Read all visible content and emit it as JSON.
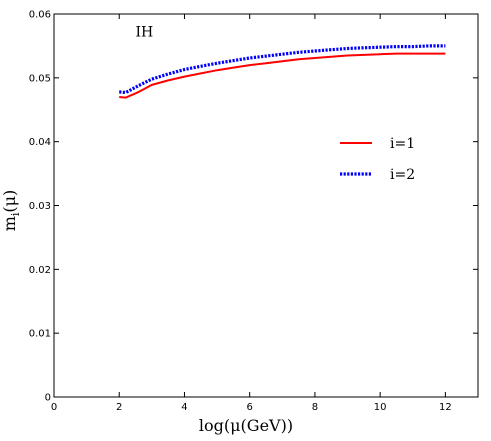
{
  "chart_data": {
    "type": "line",
    "title": "",
    "xlabel": "log(μ(GeV))",
    "ylabel": "m_i(μ)",
    "ylabel_main": "m",
    "ylabel_sub": "i",
    "ylabel_tail": "(μ)",
    "xlim": [
      0,
      13
    ],
    "ylim": [
      0,
      0.06
    ],
    "x_ticks": [
      0,
      2,
      4,
      6,
      8,
      10,
      12
    ],
    "y_ticks": [
      0,
      0.01,
      0.02,
      0.03,
      0.04,
      0.05,
      0.06
    ],
    "x_tick_labels": [
      "0",
      "2",
      "4",
      "6",
      "8",
      "10",
      "12"
    ],
    "y_tick_labels": [
      "0",
      "0.01",
      "0.02",
      "0.03",
      "0.04",
      "0.05",
      "0.06"
    ],
    "grid": false,
    "legend_position": "right",
    "annotations": [
      {
        "text": "IH",
        "x": 2.5,
        "y": 0.0565
      }
    ],
    "series": [
      {
        "name": "i=1",
        "color": "#ff0000",
        "style": "solid",
        "x": [
          2.0,
          2.2,
          2.6,
          3.0,
          3.5,
          4.0,
          4.5,
          5.0,
          5.5,
          6.0,
          6.5,
          7.0,
          7.5,
          8.0,
          8.5,
          9.0,
          9.5,
          10.0,
          10.5,
          11.0,
          11.5,
          12.0
        ],
        "y": [
          0.047,
          0.0469,
          0.0478,
          0.0489,
          0.0496,
          0.0502,
          0.0507,
          0.0512,
          0.0516,
          0.052,
          0.0523,
          0.0526,
          0.0529,
          0.0531,
          0.0533,
          0.0535,
          0.0536,
          0.0537,
          0.0538,
          0.0538,
          0.0538,
          0.0538
        ]
      },
      {
        "name": "i=2",
        "color": "#0000ff",
        "style": "dotted",
        "x": [
          2.0,
          2.2,
          2.6,
          3.0,
          3.5,
          4.0,
          4.5,
          5.0,
          5.5,
          6.0,
          6.5,
          7.0,
          7.5,
          8.0,
          8.5,
          9.0,
          9.5,
          10.0,
          10.5,
          11.0,
          11.5,
          12.0
        ],
        "y": [
          0.0478,
          0.0477,
          0.0488,
          0.0498,
          0.0506,
          0.0513,
          0.0518,
          0.0523,
          0.0527,
          0.0531,
          0.0534,
          0.0537,
          0.054,
          0.0542,
          0.0544,
          0.0546,
          0.0547,
          0.0548,
          0.0549,
          0.0549,
          0.055,
          0.055
        ]
      }
    ]
  }
}
